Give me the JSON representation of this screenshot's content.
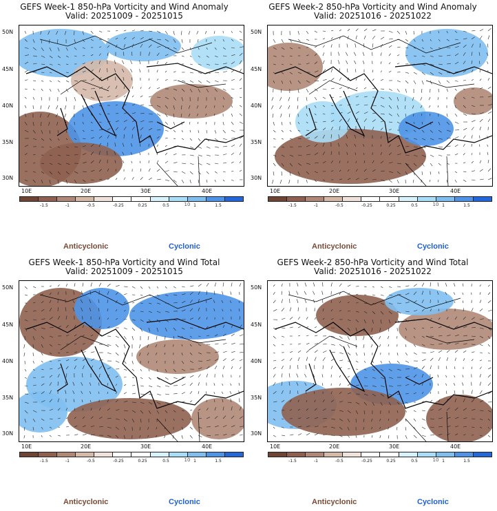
{
  "colors": {
    "anticyclonic": "#7a4a35",
    "cyclonic": "#1f5fd6",
    "scale": [
      "#6e4535",
      "#8f6050",
      "#b08878",
      "#d4b8a8",
      "#efe2da",
      "#ffffff",
      "#ffffff",
      "#d8f2fb",
      "#a9ddf6",
      "#7fbff0",
      "#4e93e6",
      "#2467d8"
    ]
  },
  "panels": [
    {
      "title_line1": "GEFS Week-1 850-hPa Vorticity and Wind Anomaly",
      "title_line2": "Valid: 20251009 - 20251015",
      "lat_labels": [
        "50N",
        "45N",
        "40N",
        "35N",
        "30N"
      ],
      "lon_labels": [
        "10E",
        "20E",
        "30E",
        "40E"
      ],
      "colorbar_ticks": [
        "-1.5",
        "-1",
        "-0.5",
        "-0.25",
        "0.25",
        "0.5",
        "1",
        "1.5"
      ],
      "colorbar_units": "10",
      "legend_anticyclonic": "Anticyclonic",
      "legend_cyclonic": "Cyclonic"
    },
    {
      "title_line1": "GEFS Week-2 850-hPa Vorticity and Wind Anomaly",
      "title_line2": "Valid: 20251016 - 20251022",
      "lat_labels": [
        "50N",
        "45N",
        "40N",
        "35N",
        "30N"
      ],
      "lon_labels": [
        "10E",
        "20E",
        "30E",
        "40E"
      ],
      "colorbar_ticks": [
        "-1.5",
        "-1",
        "-0.5",
        "-0.25",
        "0.25",
        "0.5",
        "1",
        "1.5"
      ],
      "colorbar_units": "10",
      "legend_anticyclonic": "Anticyclonic",
      "legend_cyclonic": "Cyclonic"
    },
    {
      "title_line1": "GEFS Week-1 850-hPa Vorticity and Wind Total",
      "title_line2": "Valid: 20251009 - 20251015",
      "lat_labels": [
        "50N",
        "45N",
        "40N",
        "35N",
        "30N"
      ],
      "lon_labels": [
        "10E",
        "20E",
        "30E",
        "40E"
      ],
      "colorbar_ticks": [
        "-1.5",
        "-1",
        "-0.5",
        "-0.25",
        "0.25",
        "0.5",
        "1",
        "1.5"
      ],
      "colorbar_units": "10",
      "legend_anticyclonic": "Anticyclonic",
      "legend_cyclonic": "Cyclonic"
    },
    {
      "title_line1": "GEFS Week-2 850-hPa Vorticity and Wind Total",
      "title_line2": "Valid: 20251016 - 20251022",
      "lat_labels": [
        "50N",
        "45N",
        "40N",
        "35N",
        "30N"
      ],
      "lon_labels": [
        "10E",
        "20E",
        "30E",
        "40E"
      ],
      "colorbar_ticks": [
        "-1.5",
        "-1",
        "-0.5",
        "-0.25",
        "0.25",
        "0.5",
        "1",
        "1.5"
      ],
      "colorbar_units": "10",
      "legend_anticyclonic": "Anticyclonic",
      "legend_cyclonic": "Cyclonic"
    }
  ]
}
